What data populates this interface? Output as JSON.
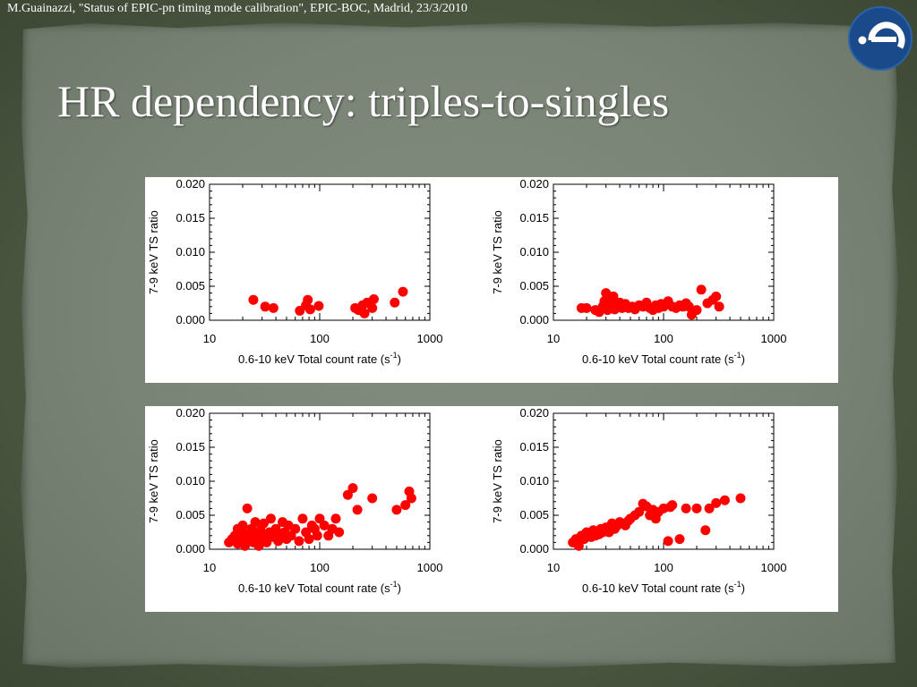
{
  "header_caption": "M.Guainazzi, \"Status of EPIC-pn timing mode calibration\", EPIC-BOC, Madrid, 23/3/2010",
  "title": "HR dependency: triples-to-singles",
  "logo": {
    "icon": "esa-logo-icon",
    "color": "#1a4a8a"
  },
  "colors": {
    "point": "#ff0000",
    "frame": "#000000"
  },
  "chart_data": [
    {
      "type": "scatter",
      "xlabel": "0.6-10 keV Total count rate (s",
      "xlabel_sup": "-1",
      "xlabel_end": ")",
      "ylabel": "7-9 keV TS ratio",
      "xscale": "log",
      "xlim": [
        10,
        1000
      ],
      "ylim": [
        0.0,
        0.02
      ],
      "xticks": [
        "10",
        "100",
        "1000"
      ],
      "yticks": [
        "0.000",
        "0.005",
        "0.010",
        "0.015",
        "0.020"
      ],
      "x": [
        25,
        32,
        38,
        66,
        75,
        78,
        82,
        98,
        210,
        225,
        245,
        255,
        270,
        300,
        310,
        480,
        570
      ],
      "y": [
        0.003,
        0.002,
        0.0018,
        0.0014,
        0.0022,
        0.003,
        0.0016,
        0.0021,
        0.0018,
        0.0015,
        0.0022,
        0.001,
        0.0026,
        0.0018,
        0.0031,
        0.0026,
        0.0042
      ]
    },
    {
      "type": "scatter",
      "xlabel": "0.6-10 keV Total count rate (s",
      "xlabel_sup": "-1",
      "xlabel_end": ")",
      "ylabel": "7-9 keV TS ratio",
      "xscale": "log",
      "xlim": [
        10,
        1000
      ],
      "ylim": [
        0.0,
        0.02
      ],
      "xticks": [
        "10",
        "100",
        "1000"
      ],
      "yticks": [
        "0.000",
        "0.005",
        "0.010",
        "0.015",
        "0.020"
      ],
      "x": [
        18,
        20,
        24,
        26,
        27,
        28,
        29,
        30,
        30,
        31,
        32,
        33,
        34,
        35,
        36,
        38,
        40,
        42,
        45,
        48,
        52,
        55,
        60,
        65,
        70,
        75,
        80,
        85,
        90,
        95,
        100,
        110,
        120,
        130,
        140,
        150,
        160,
        170,
        180,
        200,
        220,
        250,
        280,
        300,
        320
      ],
      "y": [
        0.0018,
        0.0018,
        0.0015,
        0.0012,
        0.0016,
        0.002,
        0.0028,
        0.0022,
        0.004,
        0.0015,
        0.0025,
        0.003,
        0.0018,
        0.0035,
        0.0016,
        0.002,
        0.0026,
        0.0018,
        0.0024,
        0.0018,
        0.002,
        0.0016,
        0.0022,
        0.002,
        0.0026,
        0.0018,
        0.0015,
        0.0022,
        0.0018,
        0.0024,
        0.002,
        0.0028,
        0.002,
        0.0018,
        0.0022,
        0.002,
        0.0025,
        0.002,
        0.0008,
        0.0015,
        0.0045,
        0.0025,
        0.003,
        0.0035,
        0.002
      ]
    },
    {
      "type": "scatter",
      "xlabel": "0.6-10 keV Total count rate (s",
      "xlabel_sup": "-1",
      "xlabel_end": ")",
      "ylabel": "7-9 keV TS ratio",
      "xscale": "log",
      "xlim": [
        10,
        1000
      ],
      "ylim": [
        0.0,
        0.02
      ],
      "xticks": [
        "10",
        "100",
        "1000"
      ],
      "yticks": [
        "0.000",
        "0.005",
        "0.010",
        "0.015",
        "0.020"
      ],
      "x": [
        15,
        16,
        17,
        18,
        18,
        19,
        20,
        20,
        21,
        22,
        22,
        23,
        24,
        25,
        25,
        26,
        27,
        28,
        29,
        30,
        31,
        32,
        33,
        35,
        36,
        38,
        40,
        42,
        44,
        46,
        48,
        50,
        52,
        55,
        60,
        65,
        70,
        75,
        80,
        85,
        90,
        95,
        100,
        110,
        120,
        130,
        140,
        150,
        180,
        200,
        220,
        300,
        500,
        600,
        650,
        680
      ],
      "y": [
        0.001,
        0.0015,
        0.002,
        0.0008,
        0.003,
        0.0012,
        0.0025,
        0.0035,
        0.0005,
        0.002,
        0.006,
        0.0015,
        0.003,
        0.001,
        0.0025,
        0.004,
        0.002,
        0.0005,
        0.0028,
        0.0015,
        0.0038,
        0.002,
        0.001,
        0.0025,
        0.0045,
        0.0018,
        0.003,
        0.0012,
        0.0022,
        0.004,
        0.0025,
        0.0015,
        0.0035,
        0.002,
        0.003,
        0.0012,
        0.0045,
        0.0025,
        0.0015,
        0.0035,
        0.003,
        0.002,
        0.0045,
        0.0035,
        0.002,
        0.003,
        0.0045,
        0.0025,
        0.008,
        0.009,
        0.0058,
        0.0075,
        0.0058,
        0.0065,
        0.0085,
        0.0075
      ]
    },
    {
      "type": "scatter",
      "xlabel": "0.6-10 keV Total count rate (s",
      "xlabel_sup": "-1",
      "xlabel_end": ")",
      "ylabel": "7-9 keV TS ratio",
      "xscale": "log",
      "xlim": [
        10,
        1000
      ],
      "ylim": [
        0.0,
        0.02
      ],
      "xticks": [
        "10",
        "100",
        "1000"
      ],
      "yticks": [
        "0.000",
        "0.005",
        "0.010",
        "0.015",
        "0.020"
      ],
      "x": [
        15,
        16,
        17,
        18,
        19,
        20,
        21,
        22,
        23,
        24,
        25,
        26,
        27,
        28,
        30,
        32,
        34,
        36,
        38,
        40,
        42,
        45,
        48,
        50,
        55,
        60,
        65,
        70,
        75,
        80,
        85,
        90,
        100,
        110,
        115,
        120,
        140,
        160,
        200,
        240,
        260,
        300,
        360,
        500
      ],
      "y": [
        0.001,
        0.0015,
        0.0005,
        0.002,
        0.0015,
        0.0025,
        0.002,
        0.0018,
        0.0028,
        0.002,
        0.0025,
        0.0022,
        0.003,
        0.0025,
        0.0032,
        0.0025,
        0.0038,
        0.003,
        0.0035,
        0.004,
        0.0038,
        0.0035,
        0.0042,
        0.0045,
        0.005,
        0.0055,
        0.0067,
        0.0063,
        0.005,
        0.0058,
        0.0045,
        0.0055,
        0.006,
        0.0012,
        0.0062,
        0.0065,
        0.0015,
        0.006,
        0.006,
        0.0028,
        0.006,
        0.0068,
        0.0072,
        0.0075
      ]
    }
  ]
}
